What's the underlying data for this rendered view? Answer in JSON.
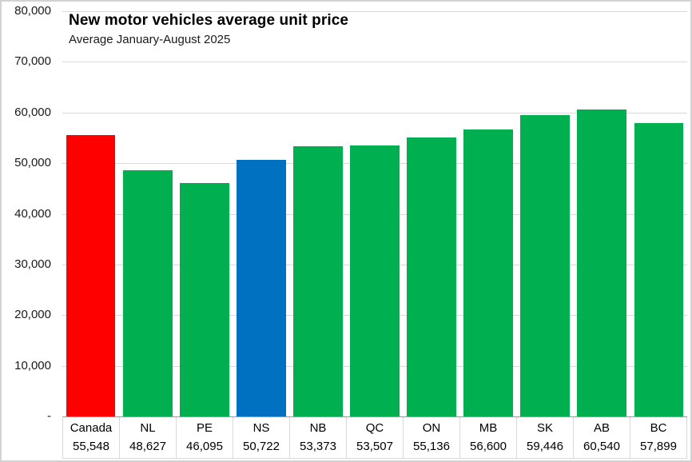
{
  "chart": {
    "title": "New motor vehicles average unit price",
    "subtitle": "Average January-August 2025"
  },
  "chart_data": {
    "type": "bar",
    "title": "New motor vehicles average unit price",
    "subtitle": "Average January-August 2025",
    "categories": [
      "Canada",
      "NL",
      "PE",
      "NS",
      "NB",
      "QC",
      "ON",
      "MB",
      "SK",
      "AB",
      "BC"
    ],
    "values": [
      55548,
      48627,
      46095,
      50722,
      53373,
      53507,
      55136,
      56600,
      59446,
      60540,
      57899
    ],
    "value_labels": [
      "55,548",
      "48,627",
      "46,095",
      "50,722",
      "53,373",
      "53,507",
      "55,136",
      "56,600",
      "59,446",
      "60,540",
      "57,899"
    ],
    "bar_colors": [
      "#FF0000",
      "#00B050",
      "#00B050",
      "#0070C0",
      "#00B050",
      "#00B050",
      "#00B050",
      "#00B050",
      "#00B050",
      "#00B050",
      "#00B050"
    ],
    "xlabel": "",
    "ylabel": "",
    "ylim": [
      0,
      80000
    ],
    "ytick_interval": 10000,
    "ytick_labels": [
      "-",
      "10,000",
      "20,000",
      "30,000",
      "40,000",
      "50,000",
      "60,000",
      "70,000",
      "80,000"
    ],
    "grid": "horizontal-on",
    "legend": "none",
    "data_table_shown": true,
    "colors": {
      "highlight_canada": "#FF0000",
      "highlight_ns": "#0070C0",
      "province_default": "#00B050",
      "gridline": "#D9D9D9",
      "axis_line": "#999999",
      "table_border": "#D9D9D9",
      "text": "#000000",
      "background": "#FFFFFF"
    }
  }
}
